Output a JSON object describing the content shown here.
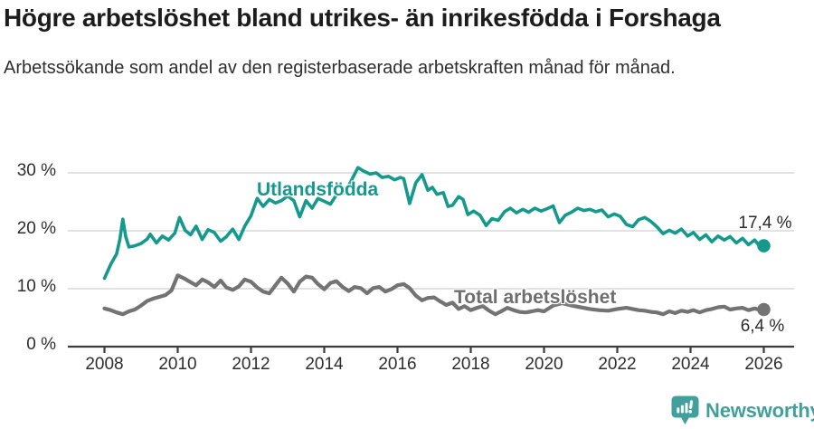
{
  "header": {
    "title": "Högre arbetslöshet bland utrikes- än inrikesfödda i Forshaga",
    "subtitle": "Arbetssökande som andel av den registerbaserade arbetskraften månad för månad."
  },
  "colors": {
    "accent_teal": "#149a8d",
    "line_gray": "#737373",
    "label_gray": "#6e6e6e",
    "grid": "#d9d9d9",
    "axis": "#3c3c3c",
    "title_text": "#1c1c1c",
    "body_text": "#2e2e2e",
    "logo_teal": "#41a09b"
  },
  "footer": {
    "brand": "Newsworthy"
  },
  "chart_data": {
    "type": "line",
    "title": "Högre arbetslöshet bland utrikes- än inrikesfödda i Forshaga",
    "subtitle": "Arbetssökande som andel av den registerbaserade arbetskraften månad för månad.",
    "grid": "horizontal",
    "legend_position": "inline-labels",
    "x_axis": {
      "ticks": [
        2008,
        2010,
        2012,
        2014,
        2016,
        2018,
        2020,
        2022,
        2024,
        2026
      ],
      "range": [
        2007.5,
        2026.8
      ]
    },
    "y_axis": {
      "unit": "%",
      "range": [
        0,
        32
      ],
      "ticks": [
        {
          "value": 30,
          "label": "30 %"
        },
        {
          "value": 20,
          "label": "20 %"
        },
        {
          "value": 10,
          "label": "10 %"
        },
        {
          "value": 0,
          "label": "0 %"
        }
      ]
    },
    "series": [
      {
        "id": "utlandsfodda",
        "name": "Utlandsfödda",
        "color": "#149a8d",
        "stroke_width": 3.6,
        "end_label": "17,4 %",
        "end_value": 17.4,
        "points": [
          [
            2008.0,
            11.8
          ],
          [
            2008.17,
            14.2
          ],
          [
            2008.33,
            16.0
          ],
          [
            2008.42,
            18.5
          ],
          [
            2008.5,
            22.0
          ],
          [
            2008.58,
            19.0
          ],
          [
            2008.67,
            17.2
          ],
          [
            2008.83,
            17.4
          ],
          [
            2009.0,
            17.8
          ],
          [
            2009.17,
            18.6
          ],
          [
            2009.25,
            19.4
          ],
          [
            2009.42,
            17.9
          ],
          [
            2009.58,
            19.1
          ],
          [
            2009.75,
            18.4
          ],
          [
            2009.92,
            19.6
          ],
          [
            2010.05,
            22.3
          ],
          [
            2010.2,
            20.1
          ],
          [
            2010.35,
            19.3
          ],
          [
            2010.5,
            20.8
          ],
          [
            2010.67,
            18.5
          ],
          [
            2010.83,
            20.2
          ],
          [
            2011.0,
            19.7
          ],
          [
            2011.17,
            18.2
          ],
          [
            2011.33,
            19.0
          ],
          [
            2011.5,
            20.3
          ],
          [
            2011.67,
            18.5
          ],
          [
            2011.83,
            20.8
          ],
          [
            2012.0,
            22.6
          ],
          [
            2012.17,
            25.6
          ],
          [
            2012.33,
            24.2
          ],
          [
            2012.5,
            25.4
          ],
          [
            2012.67,
            24.8
          ],
          [
            2012.83,
            25.2
          ],
          [
            2013.0,
            26.0
          ],
          [
            2013.17,
            25.2
          ],
          [
            2013.33,
            22.4
          ],
          [
            2013.5,
            25.2
          ],
          [
            2013.67,
            23.9
          ],
          [
            2013.83,
            25.6
          ],
          [
            2014.0,
            25.1
          ],
          [
            2014.17,
            24.6
          ],
          [
            2014.33,
            26.2
          ],
          [
            2014.5,
            26.4
          ],
          [
            2014.67,
            27.8
          ],
          [
            2014.83,
            29.8
          ],
          [
            2014.92,
            30.9
          ],
          [
            2015.08,
            30.3
          ],
          [
            2015.25,
            29.8
          ],
          [
            2015.42,
            30.0
          ],
          [
            2015.58,
            29.2
          ],
          [
            2015.75,
            29.4
          ],
          [
            2015.92,
            28.8
          ],
          [
            2016.08,
            29.2
          ],
          [
            2016.17,
            29.0
          ],
          [
            2016.33,
            24.7
          ],
          [
            2016.5,
            28.3
          ],
          [
            2016.67,
            29.7
          ],
          [
            2016.83,
            27.0
          ],
          [
            2016.95,
            27.5
          ],
          [
            2017.08,
            26.3
          ],
          [
            2017.25,
            26.6
          ],
          [
            2017.38,
            24.2
          ],
          [
            2017.5,
            24.4
          ],
          [
            2017.67,
            25.9
          ],
          [
            2017.79,
            25.4
          ],
          [
            2017.92,
            22.8
          ],
          [
            2018.08,
            23.4
          ],
          [
            2018.25,
            22.7
          ],
          [
            2018.42,
            20.9
          ],
          [
            2018.58,
            22.1
          ],
          [
            2018.75,
            21.8
          ],
          [
            2018.92,
            23.3
          ],
          [
            2019.08,
            23.9
          ],
          [
            2019.25,
            23.1
          ],
          [
            2019.42,
            23.7
          ],
          [
            2019.58,
            23.2
          ],
          [
            2019.75,
            23.9
          ],
          [
            2019.92,
            23.4
          ],
          [
            2020.08,
            23.8
          ],
          [
            2020.25,
            24.3
          ],
          [
            2020.42,
            21.4
          ],
          [
            2020.58,
            22.7
          ],
          [
            2020.75,
            23.2
          ],
          [
            2020.92,
            23.9
          ],
          [
            2021.08,
            23.5
          ],
          [
            2021.25,
            23.7
          ],
          [
            2021.42,
            23.3
          ],
          [
            2021.58,
            23.6
          ],
          [
            2021.75,
            22.4
          ],
          [
            2021.92,
            22.9
          ],
          [
            2022.08,
            22.5
          ],
          [
            2022.25,
            21.1
          ],
          [
            2022.42,
            20.7
          ],
          [
            2022.58,
            21.9
          ],
          [
            2022.75,
            22.3
          ],
          [
            2022.92,
            21.6
          ],
          [
            2023.08,
            20.7
          ],
          [
            2023.25,
            19.5
          ],
          [
            2023.42,
            20.1
          ],
          [
            2023.58,
            19.6
          ],
          [
            2023.75,
            20.3
          ],
          [
            2023.92,
            19.1
          ],
          [
            2024.08,
            19.7
          ],
          [
            2024.25,
            18.5
          ],
          [
            2024.42,
            19.3
          ],
          [
            2024.58,
            18.1
          ],
          [
            2024.75,
            19.1
          ],
          [
            2024.92,
            18.4
          ],
          [
            2025.08,
            19.0
          ],
          [
            2025.25,
            17.9
          ],
          [
            2025.42,
            18.7
          ],
          [
            2025.58,
            17.6
          ],
          [
            2025.75,
            18.4
          ],
          [
            2025.92,
            17.1
          ],
          [
            2026.0,
            17.4
          ]
        ]
      },
      {
        "id": "total",
        "name": "Total arbetslöshet",
        "color": "#737373",
        "stroke_width": 4.2,
        "end_label": "6,4 %",
        "end_value": 6.4,
        "points": [
          [
            2008.0,
            6.6
          ],
          [
            2008.17,
            6.3
          ],
          [
            2008.33,
            5.9
          ],
          [
            2008.5,
            5.6
          ],
          [
            2008.67,
            6.1
          ],
          [
            2008.83,
            6.4
          ],
          [
            2009.0,
            7.1
          ],
          [
            2009.17,
            7.9
          ],
          [
            2009.33,
            8.3
          ],
          [
            2009.5,
            8.6
          ],
          [
            2009.67,
            8.9
          ],
          [
            2009.83,
            9.7
          ],
          [
            2010.0,
            12.3
          ],
          [
            2010.17,
            11.8
          ],
          [
            2010.33,
            11.2
          ],
          [
            2010.5,
            10.6
          ],
          [
            2010.67,
            11.6
          ],
          [
            2010.83,
            11.1
          ],
          [
            2011.0,
            10.3
          ],
          [
            2011.17,
            11.4
          ],
          [
            2011.33,
            10.2
          ],
          [
            2011.5,
            9.8
          ],
          [
            2011.67,
            10.4
          ],
          [
            2011.83,
            11.6
          ],
          [
            2012.0,
            11.2
          ],
          [
            2012.17,
            10.2
          ],
          [
            2012.33,
            9.5
          ],
          [
            2012.5,
            9.2
          ],
          [
            2012.67,
            10.6
          ],
          [
            2012.83,
            11.9
          ],
          [
            2013.0,
            10.9
          ],
          [
            2013.17,
            9.5
          ],
          [
            2013.33,
            11.2
          ],
          [
            2013.5,
            12.1
          ],
          [
            2013.67,
            11.9
          ],
          [
            2013.83,
            10.8
          ],
          [
            2014.0,
            9.9
          ],
          [
            2014.17,
            11.0
          ],
          [
            2014.33,
            11.3
          ],
          [
            2014.5,
            10.3
          ],
          [
            2014.67,
            9.6
          ],
          [
            2014.83,
            10.3
          ],
          [
            2015.0,
            10.1
          ],
          [
            2015.17,
            9.2
          ],
          [
            2015.33,
            10.1
          ],
          [
            2015.5,
            10.3
          ],
          [
            2015.67,
            9.5
          ],
          [
            2015.83,
            9.9
          ],
          [
            2016.0,
            10.6
          ],
          [
            2016.17,
            10.8
          ],
          [
            2016.33,
            10.1
          ],
          [
            2016.5,
            8.8
          ],
          [
            2016.67,
            8.0
          ],
          [
            2016.83,
            8.4
          ],
          [
            2017.0,
            8.5
          ],
          [
            2017.17,
            7.8
          ],
          [
            2017.33,
            7.2
          ],
          [
            2017.5,
            7.6
          ],
          [
            2017.67,
            6.5
          ],
          [
            2017.83,
            7.0
          ],
          [
            2018.0,
            6.3
          ],
          [
            2018.17,
            6.7
          ],
          [
            2018.33,
            7.0
          ],
          [
            2018.5,
            6.2
          ],
          [
            2018.67,
            5.6
          ],
          [
            2018.83,
            6.1
          ],
          [
            2019.0,
            6.7
          ],
          [
            2019.17,
            6.3
          ],
          [
            2019.33,
            6.0
          ],
          [
            2019.5,
            5.9
          ],
          [
            2019.67,
            6.1
          ],
          [
            2019.83,
            6.3
          ],
          [
            2020.0,
            6.1
          ],
          [
            2020.25,
            7.1
          ],
          [
            2020.5,
            7.5
          ],
          [
            2020.75,
            7.1
          ],
          [
            2021.0,
            6.8
          ],
          [
            2021.25,
            6.5
          ],
          [
            2021.5,
            6.3
          ],
          [
            2021.75,
            6.2
          ],
          [
            2022.0,
            6.5
          ],
          [
            2022.25,
            6.7
          ],
          [
            2022.42,
            6.5
          ],
          [
            2022.58,
            6.3
          ],
          [
            2022.75,
            6.2
          ],
          [
            2022.92,
            6.0
          ],
          [
            2023.08,
            5.9
          ],
          [
            2023.25,
            5.6
          ],
          [
            2023.42,
            6.1
          ],
          [
            2023.58,
            5.8
          ],
          [
            2023.75,
            6.2
          ],
          [
            2023.92,
            6.0
          ],
          [
            2024.08,
            6.3
          ],
          [
            2024.25,
            5.9
          ],
          [
            2024.42,
            6.3
          ],
          [
            2024.58,
            6.5
          ],
          [
            2024.75,
            6.8
          ],
          [
            2024.92,
            6.9
          ],
          [
            2025.08,
            6.4
          ],
          [
            2025.25,
            6.6
          ],
          [
            2025.42,
            6.7
          ],
          [
            2025.58,
            6.3
          ],
          [
            2025.75,
            6.6
          ],
          [
            2025.92,
            6.3
          ],
          [
            2026.0,
            6.4
          ]
        ]
      }
    ]
  }
}
